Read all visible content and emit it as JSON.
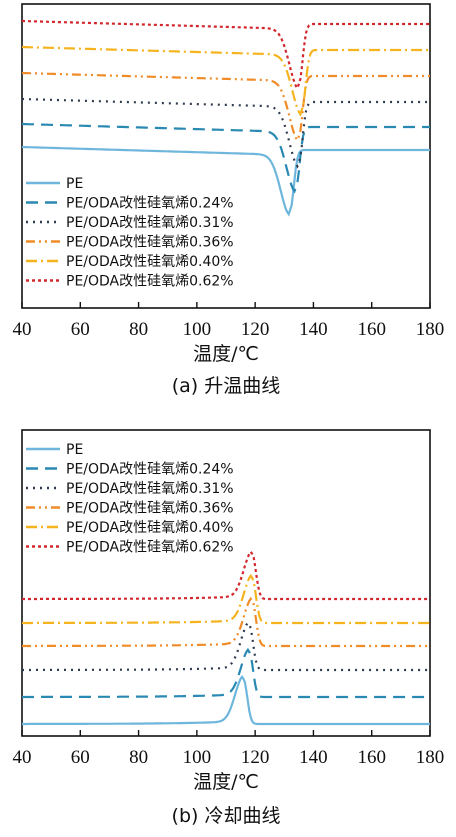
{
  "chart_data": [
    {
      "type": "line",
      "caption": "(a) 升温曲线",
      "xlabel": "温度/℃",
      "ylabel": "",
      "xlim": [
        40,
        180
      ],
      "xticks": [
        40,
        60,
        80,
        100,
        120,
        140,
        160,
        180
      ],
      "legend_position": "bottom-left",
      "series": [
        {
          "name": "PE",
          "color": "#6fb6dc",
          "dash": "solid",
          "baseline_level": 0.0,
          "peak_x": 132,
          "peak_depth": 0.55,
          "direction": "down"
        },
        {
          "name": "PE/ODA改性硅氧烯0.24%",
          "color": "#2a89b2",
          "dash": "long-dash",
          "baseline_level": 1.0,
          "peak_x": 134,
          "peak_depth": 0.55,
          "direction": "down"
        },
        {
          "name": "PE/ODA改性硅氧烯0.31%",
          "color": "#2f3b4f",
          "dash": "dot",
          "baseline_level": 2.0,
          "peak_x": 135,
          "peak_depth": 0.55,
          "direction": "down"
        },
        {
          "name": "PE/ODA改性硅氧烯0.36%",
          "color": "#f08c28",
          "dash": "dash-dot-dot",
          "baseline_level": 3.0,
          "peak_x": 135,
          "peak_depth": 0.55,
          "direction": "down"
        },
        {
          "name": "PE/ODA改性硅氧烯0.40%",
          "color": "#f5b41e",
          "dash": "dash-dot",
          "baseline_level": 4.0,
          "peak_x": 136,
          "peak_depth": 0.55,
          "direction": "down"
        },
        {
          "name": "PE/ODA改性硅氧烯0.62%",
          "color": "#d2282d",
          "dash": "dense-dot",
          "baseline_level": 5.0,
          "peak_x": 135,
          "peak_depth": 0.55,
          "direction": "down"
        }
      ]
    },
    {
      "type": "line",
      "caption": "(b) 冷却曲线",
      "xlabel": "温度/℃",
      "ylabel": "",
      "xlim": [
        40,
        180
      ],
      "xticks": [
        40,
        60,
        80,
        100,
        120,
        140,
        160,
        180
      ],
      "legend_position": "top-left",
      "series": [
        {
          "name": "PE",
          "color": "#6fb6dc",
          "dash": "solid",
          "baseline_level": 0.0,
          "peak_x": 116,
          "peak_height": 0.55,
          "direction": "up"
        },
        {
          "name": "PE/ODA改性硅氧烯0.24%",
          "color": "#2a89b2",
          "dash": "long-dash",
          "baseline_level": 1.0,
          "peak_x": 118,
          "peak_height": 0.55,
          "direction": "up"
        },
        {
          "name": "PE/ODA改性硅氧烯0.31%",
          "color": "#2f3b4f",
          "dash": "dot",
          "baseline_level": 2.0,
          "peak_x": 118,
          "peak_height": 0.55,
          "direction": "up"
        },
        {
          "name": "PE/ODA改性硅氧烯0.36%",
          "color": "#f08c28",
          "dash": "dash-dot-dot",
          "baseline_level": 3.0,
          "peak_x": 119,
          "peak_height": 0.55,
          "direction": "up"
        },
        {
          "name": "PE/ODA改性硅氧烯0.40%",
          "color": "#f5b41e",
          "dash": "dash-dot",
          "baseline_level": 4.0,
          "peak_x": 119,
          "peak_height": 0.55,
          "direction": "up"
        },
        {
          "name": "PE/ODA改性硅氧烯0.62%",
          "color": "#d2282d",
          "dash": "dense-dot",
          "baseline_level": 5.0,
          "peak_x": 119,
          "peak_height": 0.55,
          "direction": "up"
        }
      ]
    }
  ]
}
